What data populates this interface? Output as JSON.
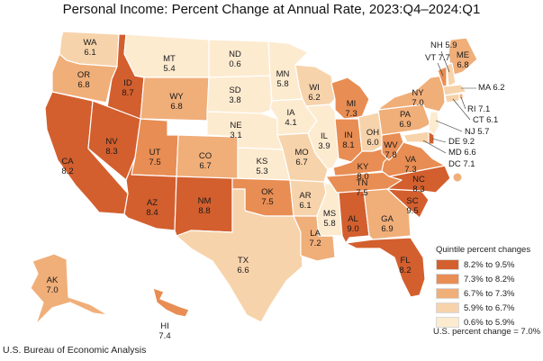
{
  "title": "Personal Income: Percent Change at Annual Rate, 2023:Q4–2024:Q1",
  "legend": {
    "title": "Quintile percent changes",
    "items": [
      {
        "label": "8.2% to 9.5%",
        "color": "#d35f2e"
      },
      {
        "label": "7.3% to 8.2%",
        "color": "#e88d53"
      },
      {
        "label": "6.7% to 7.3%",
        "color": "#f0ae79"
      },
      {
        "label": "5.9% to 6.7%",
        "color": "#f7d3ab"
      },
      {
        "label": "0.6% to 5.9%",
        "color": "#fdebd0"
      }
    ],
    "us_note": "U.S. percent change = 7.0%"
  },
  "source": "U.S. Bureau of Economic Analysis",
  "states": [
    {
      "abbr": "WA",
      "value": "6.1",
      "tier": 3
    },
    {
      "abbr": "OR",
      "value": "6.8",
      "tier": 2
    },
    {
      "abbr": "CA",
      "value": "8.2",
      "tier": 0
    },
    {
      "abbr": "ID",
      "value": "8.7",
      "tier": 0
    },
    {
      "abbr": "NV",
      "value": "8.3",
      "tier": 0
    },
    {
      "abbr": "MT",
      "value": "5.4",
      "tier": 4
    },
    {
      "abbr": "WY",
      "value": "6.8",
      "tier": 2
    },
    {
      "abbr": "UT",
      "value": "7.5",
      "tier": 1
    },
    {
      "abbr": "AZ",
      "value": "8.4",
      "tier": 0
    },
    {
      "abbr": "CO",
      "value": "6.7",
      "tier": 2
    },
    {
      "abbr": "NM",
      "value": "8.8",
      "tier": 0
    },
    {
      "abbr": "ND",
      "value": "0.6",
      "tier": 4
    },
    {
      "abbr": "SD",
      "value": "3.8",
      "tier": 4
    },
    {
      "abbr": "NE",
      "value": "3.1",
      "tier": 4
    },
    {
      "abbr": "KS",
      "value": "5.3",
      "tier": 4
    },
    {
      "abbr": "OK",
      "value": "7.5",
      "tier": 1
    },
    {
      "abbr": "TX",
      "value": "6.6",
      "tier": 3
    },
    {
      "abbr": "MN",
      "value": "5.8",
      "tier": 4
    },
    {
      "abbr": "IA",
      "value": "4.1",
      "tier": 4
    },
    {
      "abbr": "MO",
      "value": "6.7",
      "tier": 3
    },
    {
      "abbr": "AR",
      "value": "6.1",
      "tier": 3
    },
    {
      "abbr": "LA",
      "value": "7.2",
      "tier": 2
    },
    {
      "abbr": "WI",
      "value": "6.2",
      "tier": 3
    },
    {
      "abbr": "IL",
      "value": "3.9",
      "tier": 4
    },
    {
      "abbr": "MS",
      "value": "5.8",
      "tier": 4
    },
    {
      "abbr": "MI",
      "value": "7.3",
      "tier": 1
    },
    {
      "abbr": "IN",
      "value": "8.1",
      "tier": 1
    },
    {
      "abbr": "OH",
      "value": "6.0",
      "tier": 3
    },
    {
      "abbr": "KY",
      "value": "8.0",
      "tier": 1
    },
    {
      "abbr": "TN",
      "value": "7.5",
      "tier": 1
    },
    {
      "abbr": "AL",
      "value": "9.0",
      "tier": 0
    },
    {
      "abbr": "GA",
      "value": "6.9",
      "tier": 2
    },
    {
      "abbr": "FL",
      "value": "8.2",
      "tier": 0
    },
    {
      "abbr": "SC",
      "value": "9.5",
      "tier": 0
    },
    {
      "abbr": "NC",
      "value": "8.3",
      "tier": 0
    },
    {
      "abbr": "VA",
      "value": "7.3",
      "tier": 1
    },
    {
      "abbr": "WV",
      "value": "7.8",
      "tier": 1
    },
    {
      "abbr": "PA",
      "value": "6.9",
      "tier": 2
    },
    {
      "abbr": "NY",
      "value": "7.0",
      "tier": 2
    },
    {
      "abbr": "ME",
      "value": "6.8",
      "tier": 2
    },
    {
      "abbr": "AK",
      "value": "7.0",
      "tier": 2
    },
    {
      "abbr": "HI",
      "value": "7.4",
      "tier": 1
    },
    {
      "abbr": "NH",
      "value": "5.9",
      "tier": 3
    },
    {
      "abbr": "VT",
      "value": "7.7",
      "tier": 1
    },
    {
      "abbr": "MA",
      "value": "6.2",
      "tier": 3
    },
    {
      "abbr": "RI",
      "value": "7.1",
      "tier": 2
    },
    {
      "abbr": "CT",
      "value": "6.1",
      "tier": 3
    },
    {
      "abbr": "NJ",
      "value": "5.7",
      "tier": 4
    },
    {
      "abbr": "DE",
      "value": "9.2",
      "tier": 0
    },
    {
      "abbr": "MD",
      "value": "6.6",
      "tier": 3
    },
    {
      "abbr": "DC",
      "value": "7.1",
      "tier": 2
    }
  ]
}
